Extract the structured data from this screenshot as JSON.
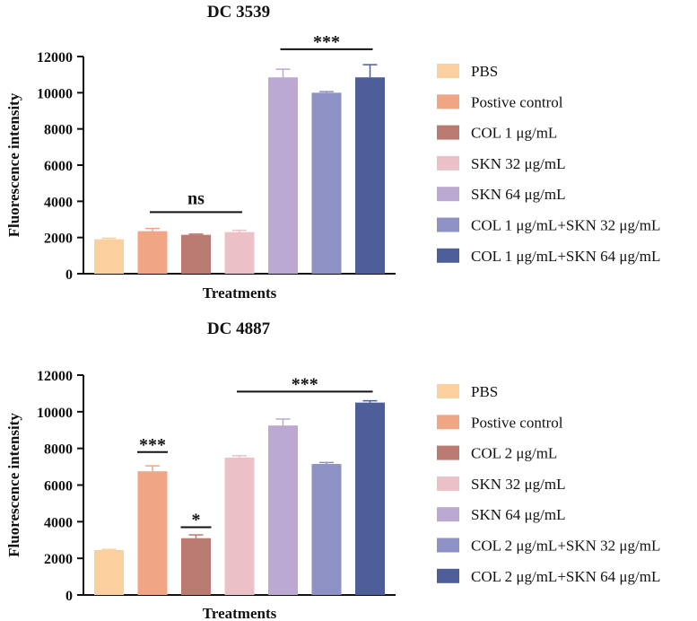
{
  "chart_data": [
    {
      "type": "bar",
      "title": "DC 3539",
      "xlabel": "Treatments",
      "ylabel": "Fluorescence intensity",
      "ylim": [
        0,
        12000
      ],
      "yticks": [
        0,
        2000,
        4000,
        6000,
        8000,
        10000,
        12000
      ],
      "categories": [
        "PBS",
        "Postive control",
        "COL 1 μg/mL",
        "SKN 32 μg/mL",
        "SKN 64 μg/mL",
        "COL 1 μg/mL+SKN 32 μg/mL",
        "COL 1 μg/mL+SKN 64 μg/mL"
      ],
      "values": [
        1900,
        2350,
        2150,
        2300,
        10850,
        10000,
        10850
      ],
      "errors": [
        60,
        150,
        40,
        100,
        450,
        60,
        700
      ],
      "colors": [
        "#FCCF9E",
        "#F0A585",
        "#B87A71",
        "#EBC0C6",
        "#BCA9D2",
        "#8E91C4",
        "#4D5E98"
      ],
      "legend_position": "right",
      "significance": [
        {
          "label": "ns",
          "from": 1,
          "to": 3,
          "y": 3400
        },
        {
          "label": "***",
          "from": 4,
          "to": 6,
          "y": 12400
        }
      ]
    },
    {
      "type": "bar",
      "title": "DC 4887",
      "xlabel": "Treatments",
      "ylabel": "Fluorescence intensity",
      "ylim": [
        0,
        12000
      ],
      "yticks": [
        0,
        2000,
        4000,
        6000,
        8000,
        10000,
        12000
      ],
      "categories": [
        "PBS",
        "Postive control",
        "COL 2 μg/mL",
        "SKN 32 μg/mL",
        "SKN 64 μg/mL",
        "COL 2 μg/mL+SKN 32 μg/mL",
        "COL 2 μg/mL+SKN 64 μg/mL"
      ],
      "values": [
        2450,
        6750,
        3100,
        7500,
        9250,
        7150,
        10500
      ],
      "errors": [
        40,
        300,
        180,
        100,
        350,
        80,
        100
      ],
      "colors": [
        "#FCCF9E",
        "#F0A585",
        "#B87A71",
        "#EBC0C6",
        "#BCA9D2",
        "#8E91C4",
        "#4D5E98"
      ],
      "legend_position": "right",
      "significance": [
        {
          "label": "***",
          "from": 1,
          "to": 1,
          "y": 7800
        },
        {
          "label": "*",
          "from": 2,
          "to": 2,
          "y": 3700
        },
        {
          "label": "***",
          "from": 3,
          "to": 6,
          "y": 11100
        }
      ]
    }
  ]
}
